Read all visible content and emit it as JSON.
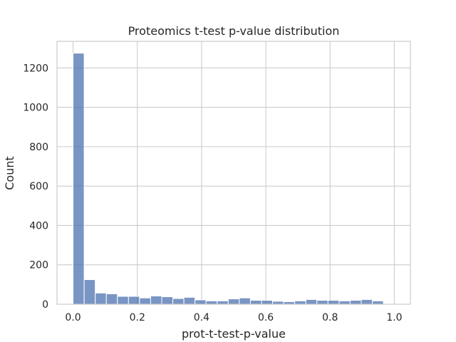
{
  "chart_data": {
    "type": "bar",
    "title": "Proteomics t-test p-value distribution",
    "xlabel": "prot-t-test-p-value",
    "ylabel": "Count",
    "xlim": [
      -0.05,
      1.05
    ],
    "ylim": [
      0,
      1335
    ],
    "xticks": [
      0.0,
      0.2,
      0.4,
      0.6,
      0.8,
      1.0
    ],
    "xtick_labels": [
      "0.0",
      "0.2",
      "0.4",
      "0.6",
      "0.8",
      "1.0"
    ],
    "yticks": [
      0,
      200,
      400,
      600,
      800,
      1000,
      1200
    ],
    "ytick_labels": [
      "0",
      "200",
      "400",
      "600",
      "800",
      "1000",
      "1200"
    ],
    "grid": true,
    "bin_start": 0.0,
    "bin_width": 0.0345,
    "values": [
      1275,
      125,
      57,
      53,
      40,
      40,
      32,
      42,
      38,
      29,
      35,
      22,
      17,
      17,
      27,
      32,
      20,
      20,
      15,
      13,
      17,
      24,
      20,
      20,
      17,
      20,
      24,
      17
    ],
    "color": "#4c72b0"
  }
}
